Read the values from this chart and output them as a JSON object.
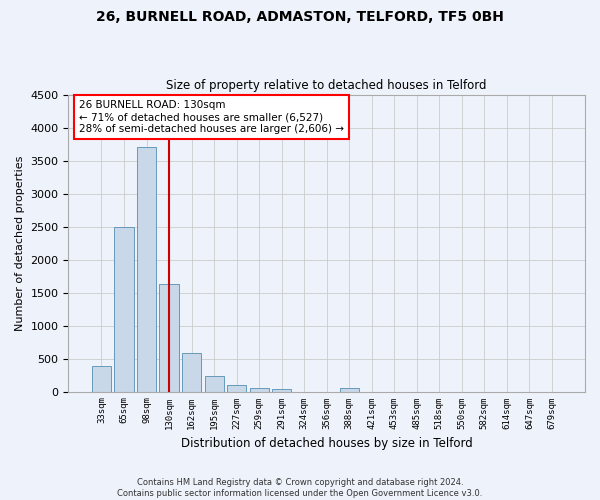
{
  "title_line1": "26, BURNELL ROAD, ADMASTON, TELFORD, TF5 0BH",
  "title_line2": "Size of property relative to detached houses in Telford",
  "xlabel": "Distribution of detached houses by size in Telford",
  "ylabel": "Number of detached properties",
  "footer_line1": "Contains HM Land Registry data © Crown copyright and database right 2024.",
  "footer_line2": "Contains public sector information licensed under the Open Government Licence v3.0.",
  "annotation_line1": "26 BURNELL ROAD: 130sqm",
  "annotation_line2": "← 71% of detached houses are smaller (6,527)",
  "annotation_line3": "28% of semi-detached houses are larger (2,606) →",
  "bar_labels": [
    "33sqm",
    "65sqm",
    "98sqm",
    "130sqm",
    "162sqm",
    "195sqm",
    "227sqm",
    "259sqm",
    "291sqm",
    "324sqm",
    "356sqm",
    "388sqm",
    "421sqm",
    "453sqm",
    "485sqm",
    "518sqm",
    "550sqm",
    "582sqm",
    "614sqm",
    "647sqm",
    "679sqm"
  ],
  "bar_values": [
    380,
    2500,
    3700,
    1630,
    590,
    230,
    105,
    60,
    35,
    0,
    0,
    55,
    0,
    0,
    0,
    0,
    0,
    0,
    0,
    0,
    0
  ],
  "bar_color": "#c8d8e8",
  "bar_edge_color": "#6699bb",
  "highlight_bar_index": 3,
  "highlight_line_color": "#cc0000",
  "grid_color": "#cccccc",
  "background_color": "#eef2fa",
  "ylim": [
    0,
    4500
  ],
  "yticks": [
    0,
    500,
    1000,
    1500,
    2000,
    2500,
    3000,
    3500,
    4000,
    4500
  ]
}
